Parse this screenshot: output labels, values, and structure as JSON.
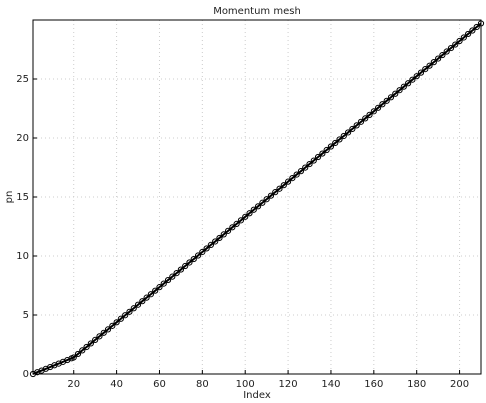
{
  "chart_data": {
    "type": "line",
    "title": "Momentum mesh",
    "x_label": "Index",
    "y_label": "pn",
    "x": [
      1,
      3,
      5,
      7,
      9,
      11,
      13,
      15,
      17,
      19,
      20,
      22,
      24,
      26,
      28,
      30,
      32,
      34,
      36,
      38,
      40,
      42,
      44,
      46,
      48,
      50,
      52,
      54,
      56,
      58,
      60,
      62,
      64,
      66,
      68,
      70,
      72,
      74,
      76,
      78,
      80,
      82,
      84,
      86,
      88,
      90,
      92,
      94,
      96,
      98,
      100,
      102,
      104,
      106,
      108,
      110,
      112,
      114,
      116,
      118,
      120,
      122,
      124,
      126,
      128,
      130,
      132,
      134,
      136,
      138,
      140,
      142,
      144,
      146,
      148,
      150,
      152,
      154,
      156,
      158,
      160,
      162,
      164,
      166,
      168,
      170,
      172,
      174,
      176,
      178,
      180,
      182,
      184,
      186,
      188,
      190,
      192,
      194,
      196,
      198,
      200,
      202,
      204,
      206,
      208,
      210
    ],
    "series": [
      {
        "name": "pn",
        "color": "#000000",
        "values": [
          0,
          0.15,
          0.29,
          0.44,
          0.59,
          0.74,
          0.88,
          1.03,
          1.18,
          1.33,
          1.4,
          1.7,
          2.0,
          2.29,
          2.59,
          2.89,
          3.19,
          3.49,
          3.78,
          4.08,
          4.38,
          4.68,
          4.98,
          5.27,
          5.57,
          5.87,
          6.17,
          6.47,
          6.76,
          7.06,
          7.36,
          7.66,
          7.96,
          8.25,
          8.55,
          8.85,
          9.15,
          9.45,
          9.74,
          10.04,
          10.34,
          10.64,
          10.94,
          11.23,
          11.53,
          11.83,
          12.13,
          12.43,
          12.72,
          13.02,
          13.32,
          13.62,
          13.92,
          14.21,
          14.51,
          14.81,
          15.11,
          15.41,
          15.7,
          16.0,
          16.3,
          16.6,
          16.9,
          17.19,
          17.49,
          17.79,
          18.09,
          18.39,
          18.68,
          18.98,
          19.28,
          19.58,
          19.88,
          20.17,
          20.47,
          20.77,
          21.07,
          21.37,
          21.66,
          21.96,
          22.26,
          22.56,
          22.86,
          23.15,
          23.45,
          23.75,
          24.05,
          24.35,
          24.64,
          24.94,
          25.24,
          25.54,
          25.84,
          26.13,
          26.43,
          26.73,
          27.03,
          27.33,
          27.62,
          27.92,
          28.22,
          28.52,
          28.82,
          29.11,
          29.41,
          29.71
        ]
      }
    ],
    "xlim": [
      1,
      210
    ],
    "xticks": [
      20,
      40,
      60,
      80,
      100,
      120,
      140,
      160,
      180,
      200
    ],
    "ylim": [
      0,
      30
    ],
    "yticks": [
      0,
      5,
      10,
      15,
      20,
      25
    ],
    "grid": true,
    "marker": "circle"
  }
}
